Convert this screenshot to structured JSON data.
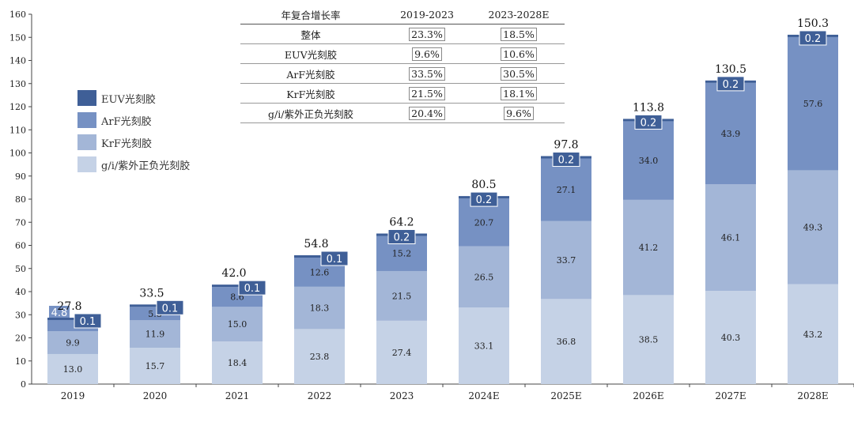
{
  "chart_data": {
    "type": "bar",
    "stacked": true,
    "categories": [
      "2019",
      "2020",
      "2021",
      "2022",
      "2023",
      "2024E",
      "2025E",
      "2026E",
      "2027E",
      "2028E"
    ],
    "series": [
      {
        "name": "g/i/紫外正负光刻胶",
        "color": "#c5d2e6",
        "values": [
          13.0,
          15.7,
          18.4,
          23.8,
          27.4,
          33.1,
          36.8,
          38.5,
          40.3,
          43.2
        ],
        "labels": [
          "13.0",
          "15.7",
          "18.4",
          "23.8",
          "27.4",
          "33.1",
          "36.8",
          "38.5",
          "40.3",
          "43.2"
        ]
      },
      {
        "name": "KrF光刻胶",
        "color": "#a3b6d7",
        "values": [
          9.9,
          11.9,
          15.0,
          18.3,
          21.5,
          26.5,
          33.7,
          41.2,
          46.1,
          49.3
        ],
        "labels": [
          "9.9",
          "11.9",
          "15.0",
          "18.3",
          "21.5",
          "26.5",
          "33.7",
          "41.2",
          "46.1",
          "49.3"
        ]
      },
      {
        "name": "ArF光刻胶",
        "color": "#7691c3",
        "values": [
          4.8,
          5.8,
          8.6,
          12.6,
          15.2,
          20.7,
          27.1,
          34.0,
          43.9,
          57.6
        ],
        "labels": [
          "4.8",
          "5.8",
          "8.6",
          "12.6",
          "15.2",
          "20.7",
          "27.1",
          "34.0",
          "43.9",
          "57.6"
        ]
      },
      {
        "name": "EUV光刻胶",
        "color": "#3f5f97",
        "values": [
          0.1,
          0.1,
          0.1,
          0.1,
          0.2,
          0.2,
          0.2,
          0.2,
          0.2,
          0.2
        ],
        "labels": [
          "0.1",
          "0.1",
          "0.1",
          "0.1",
          "0.2",
          "0.2",
          "0.2",
          "0.2",
          "0.2",
          "0.2"
        ]
      }
    ],
    "totals": [
      "27.8",
      "33.5",
      "42.0",
      "54.8",
      "64.2",
      "80.5",
      "97.8",
      "113.8",
      "130.5",
      "150.3"
    ],
    "y_ticks": [
      "0",
      "10",
      "20",
      "30",
      "40",
      "50",
      "60",
      "70",
      "80",
      "90",
      "100",
      "110",
      "120",
      "130",
      "140",
      "150",
      "160"
    ],
    "ylim": [
      0,
      160
    ],
    "title": "",
    "xlabel": "",
    "ylabel": "",
    "grid": false,
    "legend_position": "left"
  },
  "legend": {
    "items": [
      {
        "label": "EUV光刻胶",
        "color": "#3f5f97"
      },
      {
        "label": "ArF光刻胶",
        "color": "#7691c3"
      },
      {
        "label": "KrF光刻胶",
        "color": "#a3b6d7"
      },
      {
        "label": "g/i/紫外正负光刻胶",
        "color": "#c5d2e6"
      }
    ]
  },
  "cagr_table": {
    "headers": [
      "年复合增长率",
      "2019-2023",
      "2023-2028E"
    ],
    "rows": [
      {
        "name": "整体",
        "v1": "23.3%",
        "v2": "18.5%"
      },
      {
        "name": "EUV光刻胶",
        "v1": "9.6%",
        "v2": "10.6%"
      },
      {
        "name": "ArF光刻胶",
        "v1": "33.5%",
        "v2": "30.5%"
      },
      {
        "name": "KrF光刻胶",
        "v1": "21.5%",
        "v2": "18.1%"
      },
      {
        "name": "g/i/紫外正负光刻胶",
        "v1": "20.4%",
        "v2": "9.6%"
      }
    ]
  }
}
